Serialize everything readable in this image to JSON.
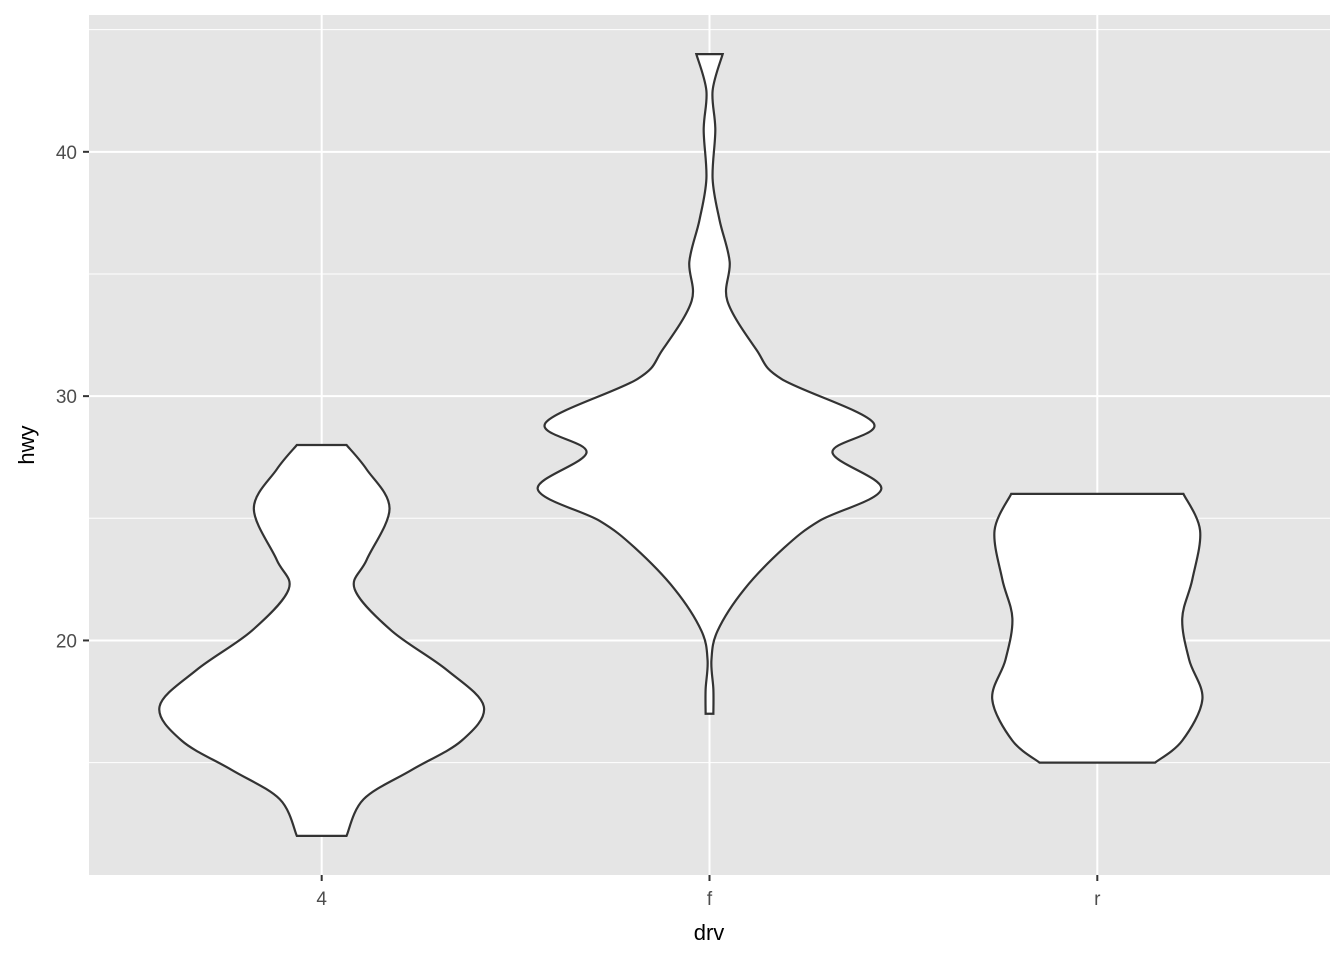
{
  "chart_data": {
    "type": "violin",
    "xlabel": "drv",
    "ylabel": "hwy",
    "categories": [
      "4",
      "f",
      "r"
    ],
    "ylim": [
      10.4,
      45.6
    ],
    "yticks": [
      20,
      30,
      40
    ],
    "grid": true,
    "colors": {
      "panel": "#e5e5e5",
      "grid": "#ffffff",
      "fill": "#ffffff",
      "outline": "#333333",
      "text": "#4d4d4d",
      "title": "#000000"
    },
    "violins": [
      {
        "category": "4",
        "profile": [
          [
            12,
            0.064
          ],
          [
            13.5,
            0.108
          ],
          [
            14.7,
            0.232
          ],
          [
            15.9,
            0.361
          ],
          [
            17.3,
            0.418
          ],
          [
            18.8,
            0.322
          ],
          [
            20.4,
            0.18
          ],
          [
            22.1,
            0.085
          ],
          [
            23.3,
            0.116
          ],
          [
            25.4,
            0.175
          ],
          [
            27,
            0.116
          ],
          [
            28,
            0.064
          ]
        ]
      },
      {
        "category": "f",
        "profile": [
          [
            17,
            0.01
          ],
          [
            18,
            0.01
          ],
          [
            19.2,
            0.005
          ],
          [
            20.4,
            0.021
          ],
          [
            22.1,
            0.09
          ],
          [
            23.8,
            0.193
          ],
          [
            24.9,
            0.284
          ],
          [
            26.2,
            0.443
          ],
          [
            27.7,
            0.317
          ],
          [
            28.9,
            0.423
          ],
          [
            30.7,
            0.186
          ],
          [
            31.9,
            0.121
          ],
          [
            33.9,
            0.046
          ],
          [
            35.5,
            0.052
          ],
          [
            37.2,
            0.026
          ],
          [
            38.9,
            0.008
          ],
          [
            40.9,
            0.015
          ],
          [
            42.5,
            0.008
          ],
          [
            44,
            0.034
          ]
        ]
      },
      {
        "category": "r",
        "profile": [
          [
            15,
            0.149
          ],
          [
            15.9,
            0.219
          ],
          [
            17.6,
            0.271
          ],
          [
            19.2,
            0.237
          ],
          [
            20.9,
            0.219
          ],
          [
            22.5,
            0.245
          ],
          [
            24.5,
            0.265
          ],
          [
            26,
            0.222
          ]
        ]
      }
    ]
  }
}
